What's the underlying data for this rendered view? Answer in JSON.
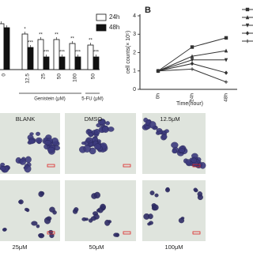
{
  "chart_data": [
    {
      "type": "bar",
      "categories": [
        "0",
        "12.5",
        "25",
        "50",
        "100",
        "50"
      ],
      "group_labels": [
        "Genistein (μM)",
        "5-FU (μM)"
      ],
      "ylim": [
        0,
        60
      ],
      "series": [
        {
          "name": "24h",
          "color": "#ffffff",
          "values": [
            58,
            45,
            38,
            38,
            33,
            31
          ],
          "annotations": [
            null,
            "*",
            "**",
            "**",
            "**",
            "**"
          ]
        },
        {
          "name": "48h",
          "color": "#111111",
          "values": [
            53,
            28,
            16,
            16,
            16,
            16
          ],
          "annotations": [
            null,
            "***",
            "***",
            "***",
            "***",
            "***"
          ]
        }
      ]
    },
    {
      "type": "line",
      "panel_label": "B",
      "categories": [
        "0h",
        "24h",
        "48h"
      ],
      "xlabel": "Time(hour)",
      "ylabel": "cell counts(× 10⁵)",
      "ylim": [
        0,
        4
      ],
      "yticks": [
        0,
        1,
        2,
        3,
        4
      ],
      "series": [
        {
          "color": "#333333",
          "marker": "square",
          "values": [
            1,
            2.3,
            2.8
          ]
        },
        {
          "color": "#333333",
          "marker": "triangle",
          "values": [
            1,
            1.8,
            2.1
          ]
        },
        {
          "color": "#333333",
          "marker": "triangle-down",
          "values": [
            1,
            1.6,
            1.6
          ]
        },
        {
          "color": "#333333",
          "marker": "diamond",
          "values": [
            1,
            1.4,
            0.9
          ]
        },
        {
          "color": "#333333",
          "marker": "plus",
          "values": [
            1,
            1.1,
            0.4
          ]
        }
      ]
    }
  ],
  "micrographs": {
    "labels": [
      "BLANK",
      "DMSO",
      "12.5μM",
      "25μM",
      "50μM",
      "100μM"
    ]
  }
}
